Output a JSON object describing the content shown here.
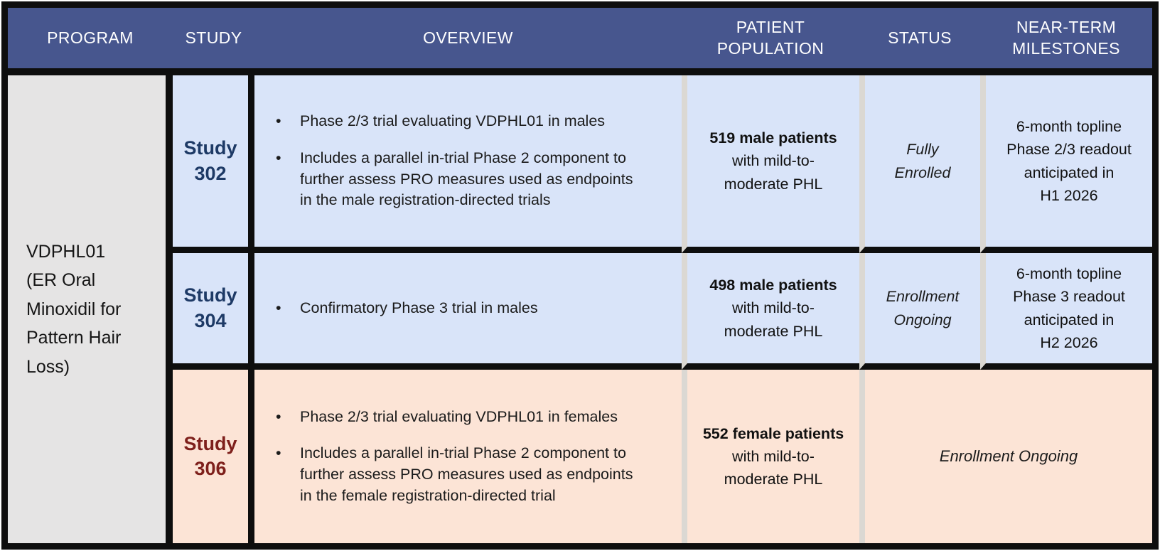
{
  "header": {
    "columns": [
      "PROGRAM",
      "STUDY",
      "OVERVIEW",
      "PATIENT\nPOPULATION",
      "STATUS",
      "NEAR-TERM\nMILESTONES"
    ]
  },
  "program": {
    "name": "VDPHL01\n(ER Oral\nMinoxidil for\nPattern Hair\nLoss)"
  },
  "bullet_glyph": "•",
  "rows": [
    {
      "study": "Study\n302",
      "overview_bullets": [
        "Phase 2/3 trial evaluating VDPHL01 in males",
        "Includes a parallel in-trial Phase 2 component to further assess PRO measures used as endpoints in the male registration-directed trials"
      ],
      "population": {
        "bold": "519 male patients",
        "rest": "with mild-to-moderate PHL"
      },
      "status": "Fully\nEnrolled",
      "milestone": "6-month topline\nPhase 2/3 readout\nanticipated in\nH1 2026"
    },
    {
      "study": "Study\n304",
      "overview_bullets": [
        "Confirmatory Phase 3 trial in males"
      ],
      "population": {
        "bold": "498 male patients",
        "rest": "with mild-to-moderate PHL"
      },
      "status": "Enrollment\nOngoing",
      "milestone": "6-month topline\nPhase 3 readout\nanticipated in\nH2 2026"
    },
    {
      "study": "Study\n306",
      "overview_bullets": [
        "Phase 2/3 trial evaluating VDPHL01 in females",
        "Includes a parallel in-trial Phase 2 component to further assess PRO measures used as endpoints in the female registration-directed trial"
      ],
      "population": {
        "bold": "552 female patients",
        "rest": "with mild-to-moderate PHL"
      },
      "status_milestone": "Enrollment Ongoing"
    }
  ],
  "colors": {
    "header_bg": "#47568E",
    "row_blue_bg": "#D9E4F9",
    "row_pink_bg": "#FCE4D6",
    "program_bg": "#E5E4E4",
    "study_navy": "#1E3A66",
    "study_red": "#7E201C",
    "border_black": "#0e0e0e",
    "divider_gray": "#DBD8D3"
  }
}
